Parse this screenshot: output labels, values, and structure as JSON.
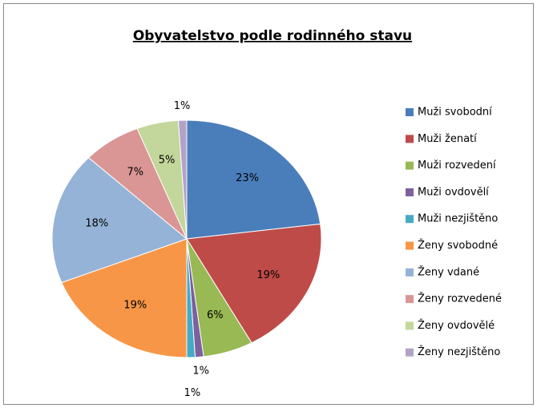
{
  "chart_data": {
    "type": "pie",
    "title": "Obyvatelstvo podle  rodinného stavu",
    "categories": [
      "Muži svobodní",
      "Muži ženatí",
      "Muži rozvedení",
      "Muži ovdovělí",
      "Muži nezjištěno",
      "Ženy svobodné",
      "Ženy vdané",
      "Ženy rozvedené",
      "Ženy ovdovělé",
      "Ženy nezjištěno"
    ],
    "values": [
      23,
      19,
      6,
      1,
      1,
      19,
      18,
      7,
      5,
      1
    ],
    "value_labels": [
      "23%",
      "19%",
      "6%",
      "1%",
      "1%",
      "19%",
      "18%",
      "7%",
      "5%",
      "1%"
    ],
    "colors": [
      "#4a7ebb",
      "#be4b48",
      "#98b954",
      "#7d60a0",
      "#46aac5",
      "#f79646",
      "#95b3d7",
      "#d99694",
      "#c3d69b",
      "#b3a2c7"
    ],
    "legend": "right"
  }
}
